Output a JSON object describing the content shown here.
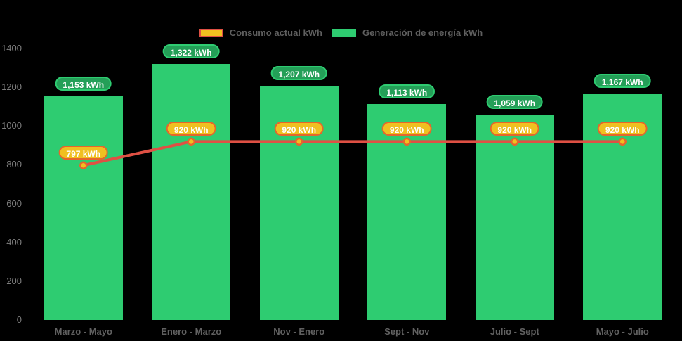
{
  "chart_data": {
    "type": "bar",
    "title": "",
    "categories": [
      "Marzo - Mayo",
      "Enero - Marzo",
      "Nov - Enero",
      "Sept - Nov",
      "Julio - Sept",
      "Mayo - Julio"
    ],
    "series": [
      {
        "name": "Generación de energía kWh",
        "type": "bar",
        "values": [
          1153,
          1322,
          1207,
          1113,
          1059,
          1167
        ],
        "data_labels": [
          "1,153 kWh",
          "1,322 kWh",
          "1,207 kWh",
          "1,113 kWh",
          "1,059 kWh",
          "1,167 kWh"
        ],
        "color": "#2ecc71"
      },
      {
        "name": "Consumo actual kWh",
        "type": "line",
        "values": [
          797,
          920,
          920,
          920,
          920,
          920
        ],
        "data_labels": [
          "797 kWh",
          "920 kWh",
          "920 kWh",
          "920 kWh",
          "920 kWh",
          "920 kWh"
        ],
        "color": "#df5044",
        "point_fill": "#f0c020",
        "point_stroke": "#e5662c"
      }
    ],
    "xlabel": "",
    "ylabel": "",
    "ylim": [
      0,
      1400
    ],
    "y_ticks": [
      "0",
      "200",
      "400",
      "600",
      "800",
      "1000",
      "1200",
      "1400"
    ],
    "grid": false,
    "legend_position": "top",
    "background": "#000000"
  },
  "legend": {
    "items": [
      {
        "label": "Consumo actual kWh",
        "swatch_fill": "#f0c020",
        "swatch_border": "#df5044"
      },
      {
        "label": "Generación de energía kWh",
        "swatch_fill": "#2ecc71",
        "swatch_border": "#2ecc71"
      }
    ]
  }
}
